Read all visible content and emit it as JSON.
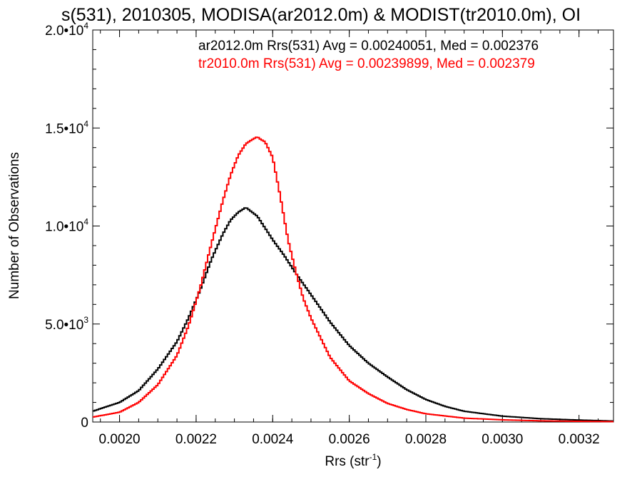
{
  "chart_data": {
    "type": "line",
    "title": "s(531), 2010305, MODISA(ar2012.0m) & MODIST(tr2010.0m), OI",
    "xlabel": "Rrs (str",
    "xlabel_sup": "-1",
    "xlabel_end": ")",
    "ylabel": "Number of Observations",
    "xlim": [
      0.00193,
      0.00329
    ],
    "ylim": [
      0,
      20000
    ],
    "x_ticks": [
      {
        "value": 0.002,
        "label": "0.0020"
      },
      {
        "value": 0.0022,
        "label": "0.0022"
      },
      {
        "value": 0.0024,
        "label": "0.0024"
      },
      {
        "value": 0.0026,
        "label": "0.0026"
      },
      {
        "value": 0.0028,
        "label": "0.0028"
      },
      {
        "value": 0.003,
        "label": "0.0030"
      },
      {
        "value": 0.0032,
        "label": "0.0032"
      }
    ],
    "y_ticks": [
      {
        "value": 0,
        "mant": "0",
        "exp": ""
      },
      {
        "value": 5000,
        "mant": "5.0•10",
        "exp": "3"
      },
      {
        "value": 10000,
        "mant": "1.0•10",
        "exp": "4"
      },
      {
        "value": 15000,
        "mant": "1.5•10",
        "exp": "4"
      },
      {
        "value": 20000,
        "mant": "2.0•10",
        "exp": "4"
      }
    ],
    "grid": false,
    "legend": [
      {
        "text": "ar2012.0m Rrs(531) Avg = 0.00240051, Med = 0.002376",
        "color": "#000000"
      },
      {
        "text": "tr2010.0m Rrs(531) Avg = 0.00239899, Med = 0.002379",
        "color": "#ff0000"
      }
    ],
    "legend_position": "top-right",
    "series": [
      {
        "color": "#000000",
        "style": "step",
        "x": [
          0.00193,
          0.002,
          0.00205,
          0.0021,
          0.00215,
          0.00218,
          0.00221,
          0.00224,
          0.00227,
          0.00229,
          0.00231,
          0.00233,
          0.00234,
          0.00236,
          0.00238,
          0.0024,
          0.00243,
          0.00246,
          0.0025,
          0.00255,
          0.0026,
          0.00265,
          0.0027,
          0.00275,
          0.0028,
          0.00285,
          0.0029,
          0.003,
          0.0031,
          0.0032,
          0.00329
        ],
        "y": [
          550,
          1000,
          1600,
          2700,
          4100,
          5300,
          6700,
          8300,
          9600,
          10300,
          10700,
          10950,
          10800,
          10500,
          9900,
          9300,
          8500,
          7600,
          6500,
          5100,
          3900,
          3000,
          2300,
          1650,
          1150,
          800,
          550,
          300,
          170,
          100,
          50
        ]
      },
      {
        "color": "#ff0000",
        "style": "step",
        "x": [
          0.00193,
          0.002,
          0.00205,
          0.0021,
          0.00215,
          0.00218,
          0.00221,
          0.00224,
          0.00227,
          0.00229,
          0.00231,
          0.00233,
          0.00235,
          0.00236,
          0.00237,
          0.00238,
          0.0024,
          0.00242,
          0.00244,
          0.00246,
          0.00248,
          0.0025,
          0.00255,
          0.0026,
          0.00265,
          0.0027,
          0.00275,
          0.0028,
          0.0029,
          0.003,
          0.0031,
          0.0032,
          0.00329
        ],
        "y": [
          250,
          500,
          1000,
          1900,
          3400,
          4900,
          6800,
          9100,
          11300,
          12600,
          13600,
          14200,
          14450,
          14550,
          14400,
          14300,
          13500,
          11500,
          9300,
          7700,
          6300,
          5300,
          3300,
          2100,
          1450,
          950,
          640,
          420,
          200,
          110,
          60,
          35,
          20
        ]
      }
    ]
  }
}
